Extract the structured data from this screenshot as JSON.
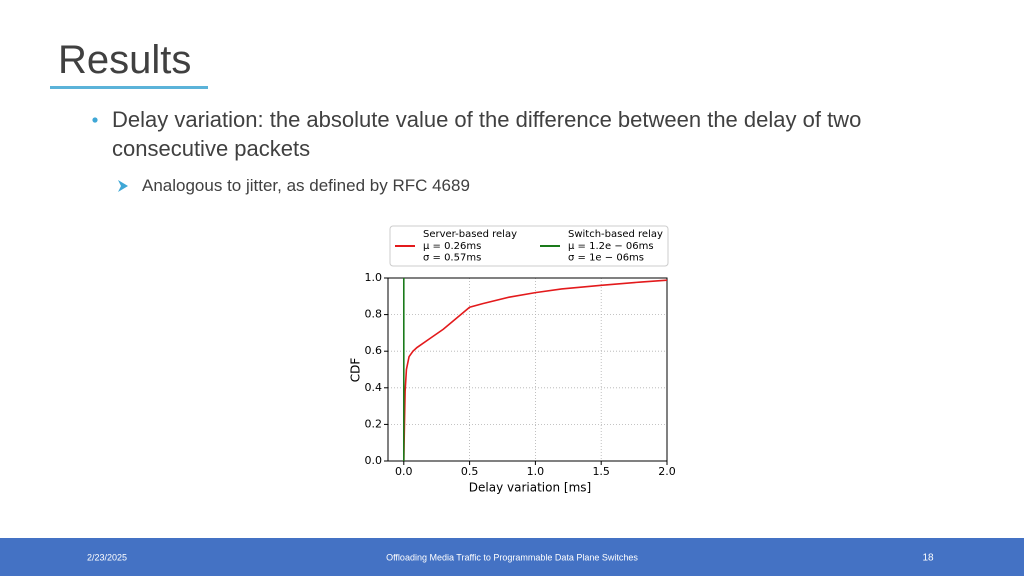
{
  "header": {
    "title": "Results"
  },
  "bullets": [
    {
      "text": "Delay variation: the absolute value of the difference between the delay of two consecutive packets",
      "sub": [
        "Analogous to jitter, as defined by RFC 4689"
      ]
    }
  ],
  "chart_data": {
    "type": "line",
    "xlabel": "Delay variation [ms]",
    "ylabel": "CDF",
    "xlim": [
      -0.12,
      2.0
    ],
    "ylim": [
      0,
      1.0
    ],
    "xticks": [
      {
        "value": 0,
        "label": "0.0"
      },
      0.5,
      {
        "value": 1,
        "label": "1.0"
      },
      1.5,
      {
        "value": 2,
        "label": "2.0"
      }
    ],
    "yticks": [
      {
        "value": 0,
        "label": "0.0"
      },
      0.2,
      0.4,
      0.6,
      0.8,
      {
        "value": 1,
        "label": "1.0"
      }
    ],
    "grid": true,
    "series": [
      {
        "name": "Server-based relay",
        "stats": [
          "μ = 0.26ms",
          "σ = 0.57ms"
        ],
        "color": "#e31a1c",
        "x": [
          0,
          0.005,
          0.01,
          0.02,
          0.04,
          0.07,
          0.1,
          0.2,
          0.3,
          0.4,
          0.5,
          0.6,
          0.8,
          1.0,
          1.2,
          1.5,
          1.8,
          2.0
        ],
        "values": [
          0,
          0.2,
          0.38,
          0.5,
          0.57,
          0.6,
          0.62,
          0.67,
          0.72,
          0.78,
          0.84,
          0.86,
          0.895,
          0.92,
          0.94,
          0.96,
          0.978,
          0.988
        ]
      },
      {
        "name": "Switch-based relay",
        "stats": [
          "μ = 1.2e − 06ms",
          "σ = 1e − 06ms"
        ],
        "color": "#1a7a1a",
        "x": [
          0,
          0
        ],
        "values": [
          0,
          1.0
        ]
      }
    ]
  },
  "footer": {
    "date": "2/23/2025",
    "center": "Offloading Media Traffic to Programmable Data Plane Switches",
    "page": "18"
  }
}
